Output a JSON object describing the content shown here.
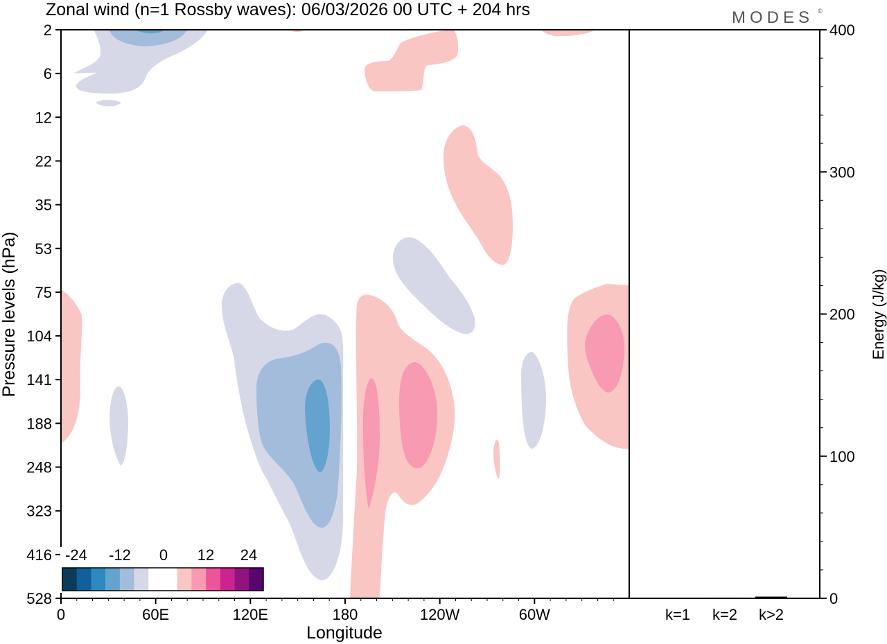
{
  "title": "Zonal wind (n=1 Rossby waves):  06/03/2026  00 UTC  + 204 hrs",
  "brand": "MODES",
  "brand_mark": "©",
  "chart_data": [
    {
      "type": "heatmap",
      "name": "zonal-wind-cross-section",
      "xlabel": "Longitude",
      "ylabel": "Pressure levels (hPa)",
      "x_ticks": [
        "0",
        "60E",
        "120E",
        "180",
        "120W",
        "60W"
      ],
      "x_tick_values": [
        0,
        60,
        120,
        180,
        240,
        300
      ],
      "xlim": [
        0,
        360
      ],
      "y_ticks": [
        "2",
        "6",
        "12",
        "22",
        "35",
        "53",
        "75",
        "104",
        "141",
        "188",
        "248",
        "323",
        "416",
        "528"
      ],
      "colorbar": {
        "tick_labels": [
          "-24",
          "-12",
          "0",
          "12",
          "24"
        ],
        "colors": [
          "#0a3a5c",
          "#11609a",
          "#2c8ac0",
          "#64a3cd",
          "#a3bcdc",
          "#d6d8e8",
          "#ffffff",
          "#ffffff",
          "#f9c6c3",
          "#f79ab2",
          "#ee5599",
          "#cc2390",
          "#92137e",
          "#55076e"
        ]
      },
      "features": [
        {
          "sign": "negative",
          "peak": "-15",
          "lon_range": [
            145,
            180
          ],
          "levels": "75-528"
        },
        {
          "sign": "positive",
          "peak": "12",
          "lon_range": [
            185,
            250
          ],
          "levels": "75-528"
        },
        {
          "sign": "positive",
          "peak": "12",
          "lon_range": [
            320,
            360
          ],
          "levels": "75-248"
        },
        {
          "sign": "negative",
          "peak": "-6",
          "lon_range": [
            210,
            265
          ],
          "levels": "53-104"
        },
        {
          "sign": "positive",
          "peak": "6",
          "lon_range": [
            243,
            285
          ],
          "levels": "17-62"
        },
        {
          "sign": "negative",
          "peak": "-18",
          "lon_range": [
            10,
            85
          ],
          "levels": "2-12"
        },
        {
          "sign": "positive",
          "peak": "6",
          "lon_range": [
            195,
            255
          ],
          "levels": "2-8"
        }
      ]
    },
    {
      "type": "bar",
      "name": "wave-energy",
      "ylabel": "Energy (J/kg)",
      "categories": [
        "k=1",
        "k=2",
        "k>2"
      ],
      "values": [
        0.3,
        0.5,
        1.2
      ],
      "ylim": [
        0,
        400
      ],
      "y_ticks": [
        "0",
        "100",
        "200",
        "300",
        "400"
      ],
      "y_tick_values": [
        0,
        100,
        200,
        300,
        400
      ]
    }
  ]
}
